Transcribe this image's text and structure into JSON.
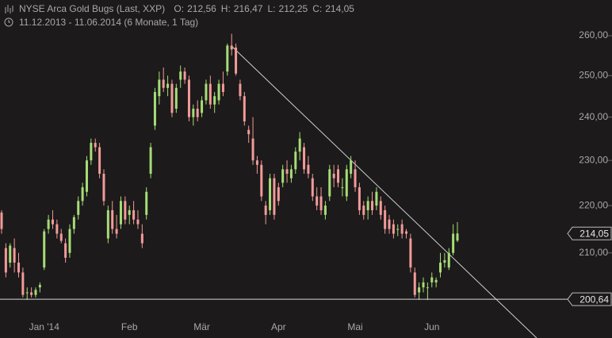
{
  "chart_data": {
    "type": "candlestick",
    "title": "NYSE Arca Gold Bugs (Last, XXP)",
    "quote": [
      {
        "name": "O:",
        "value": 212.56,
        "label": "212,56"
      },
      {
        "name": "H:",
        "value": 216.47,
        "label": "216,47"
      },
      {
        "name": "L:",
        "value": 212.25,
        "label": "212,25"
      },
      {
        "name": "C:",
        "value": 214.05,
        "label": "214,05"
      }
    ],
    "subtitle": "11.12.2013 - 11.06.2014 (6 Monate, 1 Tag)",
    "log_scale": true,
    "ylim": [
      197.1,
      269.3
    ],
    "yticks": [
      {
        "value": 210,
        "label": "210,00"
      },
      {
        "value": 220,
        "label": "220,00"
      },
      {
        "value": 230,
        "label": "230,00"
      },
      {
        "value": 240,
        "label": "240,00"
      },
      {
        "value": 250,
        "label": "250,00"
      },
      {
        "value": 260,
        "label": "260,00"
      }
    ],
    "up_color": "#a6dc78",
    "down_color": "#f29a9a",
    "price_labels": [
      {
        "value": 214.05,
        "label": "214,05"
      },
      {
        "value": 200.64,
        "label": "200,64"
      }
    ],
    "categories": [
      null,
      null,
      null,
      null,
      null,
      null,
      null,
      null,
      null,
      null,
      "Jan '14",
      null,
      null,
      null,
      null,
      null,
      null,
      null,
      null,
      null,
      null,
      null,
      null,
      null,
      null,
      null,
      null,
      null,
      null,
      null,
      "Feb",
      null,
      null,
      null,
      null,
      null,
      null,
      null,
      null,
      null,
      null,
      null,
      null,
      null,
      null,
      null,
      null,
      "Mär",
      null,
      null,
      null,
      null,
      null,
      null,
      null,
      null,
      null,
      null,
      null,
      null,
      null,
      null,
      null,
      null,
      null,
      "Apr",
      null,
      null,
      null,
      null,
      null,
      null,
      null,
      null,
      null,
      null,
      null,
      null,
      null,
      null,
      null,
      null,
      null,
      "Mai",
      null,
      null,
      null,
      null,
      null,
      null,
      null,
      null,
      null,
      null,
      null,
      null,
      null,
      null,
      null,
      null,
      null,
      "Jun",
      null,
      null,
      null,
      null,
      null,
      null
    ],
    "ohlc": [
      [
        218.5,
        219,
        214,
        215
      ],
      [
        211,
        212,
        205,
        206
      ],
      [
        208,
        212,
        207,
        211.5
      ],
      [
        211,
        213,
        206,
        208
      ],
      [
        208,
        210,
        205,
        206
      ],
      [
        206,
        207,
        201,
        201.5
      ],
      [
        202,
        203,
        200.5,
        202
      ],
      [
        202,
        203,
        201,
        201.5
      ],
      [
        201.5,
        203,
        201,
        202.5
      ],
      [
        203,
        204,
        202,
        203.5
      ],
      [
        207,
        215,
        206.5,
        214.5
      ],
      [
        215,
        218,
        214,
        217
      ],
      [
        217,
        219,
        215,
        216
      ],
      [
        216,
        217,
        213,
        214
      ],
      [
        214,
        215,
        212,
        212.5
      ],
      [
        212,
        213,
        208,
        209
      ],
      [
        210,
        216,
        209,
        215
      ],
      [
        215,
        218,
        214,
        217.5
      ],
      [
        218,
        222,
        217,
        221
      ],
      [
        221,
        225,
        220,
        224
      ],
      [
        223,
        231,
        222,
        230
      ],
      [
        230,
        235,
        229,
        234
      ],
      [
        234,
        235,
        232,
        233
      ],
      [
        233,
        234,
        226,
        227
      ],
      [
        227,
        228,
        220,
        221
      ],
      [
        213,
        220,
        212,
        219
      ],
      [
        219,
        221,
        214,
        215
      ],
      [
        215,
        218,
        213,
        214
      ],
      [
        216,
        222,
        215,
        221
      ],
      [
        221,
        222,
        216,
        217
      ],
      [
        218,
        220,
        216,
        219
      ],
      [
        219,
        221,
        216,
        217
      ],
      [
        217,
        219,
        215,
        216
      ],
      [
        214,
        216,
        211,
        212
      ],
      [
        218,
        224,
        217,
        223
      ],
      [
        227,
        234,
        226,
        233
      ],
      [
        238,
        247,
        237,
        246
      ],
      [
        245,
        251,
        243,
        249
      ],
      [
        249,
        252,
        246,
        247
      ],
      [
        247,
        250,
        245,
        248
      ],
      [
        248,
        249,
        240,
        241
      ],
      [
        242,
        248,
        241,
        247
      ],
      [
        249,
        252.5,
        247,
        251
      ],
      [
        251,
        252,
        248,
        249
      ],
      [
        249,
        250,
        239,
        240
      ],
      [
        240,
        243,
        238,
        242
      ],
      [
        242,
        244,
        239,
        240
      ],
      [
        241,
        245,
        240,
        244
      ],
      [
        244,
        249,
        243,
        248
      ],
      [
        248,
        250,
        242,
        243
      ],
      [
        243,
        246,
        241,
        245
      ],
      [
        244,
        249,
        243,
        248
      ],
      [
        248,
        251,
        245,
        246
      ],
      [
        251,
        258,
        250,
        257.5
      ],
      [
        257.5,
        260.5,
        255,
        256.5
      ],
      [
        257,
        258,
        250,
        250.5
      ],
      [
        248,
        249,
        244,
        245
      ],
      [
        245,
        246,
        238,
        239
      ],
      [
        237,
        238,
        234,
        236
      ],
      [
        235,
        240,
        229,
        230
      ],
      [
        230,
        231,
        227,
        229
      ],
      [
        229,
        230,
        221,
        222
      ],
      [
        220,
        221,
        216,
        218
      ],
      [
        219,
        227,
        218,
        226
      ],
      [
        226,
        227,
        217,
        218
      ],
      [
        224,
        225,
        220,
        221
      ],
      [
        225,
        229,
        224,
        228
      ],
      [
        228,
        230,
        225,
        227
      ],
      [
        226,
        229,
        225,
        228
      ],
      [
        228,
        233,
        227,
        232
      ],
      [
        232,
        236.5,
        230,
        235
      ],
      [
        233,
        234,
        227,
        228
      ],
      [
        229,
        231,
        226,
        227
      ],
      [
        226,
        227,
        221,
        222
      ],
      [
        222,
        224,
        219,
        220
      ],
      [
        222,
        224,
        218,
        219
      ],
      [
        218,
        221,
        217,
        220
      ],
      [
        222,
        229,
        221,
        228
      ],
      [
        227,
        229,
        224,
        226
      ],
      [
        228,
        229,
        224,
        225
      ],
      [
        224,
        226,
        222,
        224
      ],
      [
        222,
        229,
        221,
        228
      ],
      [
        227,
        231,
        226,
        230
      ],
      [
        228,
        230,
        223,
        224
      ],
      [
        224,
        225,
        218,
        219
      ],
      [
        220,
        221,
        217,
        218
      ],
      [
        219,
        222,
        217,
        221
      ],
      [
        221,
        223,
        218,
        219
      ],
      [
        220,
        224,
        219,
        223
      ],
      [
        221,
        222,
        217,
        218
      ],
      [
        219,
        220,
        214,
        215
      ],
      [
        217,
        218,
        214,
        215
      ],
      [
        216,
        217,
        213,
        214
      ],
      [
        215,
        216,
        213.5,
        215
      ],
      [
        216,
        217,
        213,
        214
      ],
      [
        214.5,
        215,
        213,
        214
      ],
      [
        213,
        214,
        206,
        207
      ],
      [
        206,
        207,
        201,
        201.5
      ],
      [
        202,
        204,
        200.5,
        203
      ],
      [
        203,
        205,
        202,
        204
      ],
      [
        203,
        204,
        200.5,
        203
      ],
      [
        204,
        206,
        203,
        205
      ],
      [
        204,
        205,
        203,
        204.5
      ],
      [
        206,
        210,
        205,
        208
      ],
      [
        208,
        210,
        207,
        208.5
      ],
      [
        207,
        211,
        206.5,
        210
      ],
      [
        210,
        216,
        209.5,
        214
      ],
      [
        212.56,
        216.47,
        212.25,
        214.05
      ]
    ]
  }
}
